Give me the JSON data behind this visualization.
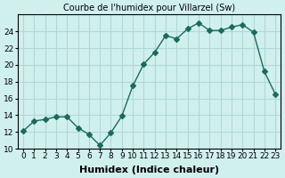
{
  "x": [
    0,
    1,
    2,
    3,
    4,
    5,
    6,
    7,
    8,
    9,
    10,
    11,
    12,
    13,
    14,
    15,
    16,
    17,
    18,
    19,
    20,
    21,
    22,
    23
  ],
  "y": [
    12.1,
    13.3,
    13.5,
    13.8,
    13.8,
    12.5,
    11.7,
    10.4,
    11.9,
    13.9,
    17.5,
    20.1,
    21.5,
    23.5,
    23.1,
    24.3,
    25.0,
    24.1,
    24.1,
    24.5,
    24.8,
    23.9,
    19.2,
    16.5
  ],
  "line_color": "#1a6b5a",
  "marker": "D",
  "marker_size": 3,
  "bg_color": "#d0f0ee",
  "grid_color": "#b0d8d8",
  "title": "Courbe de l'humidex pour Villarzel (Sw)",
  "xlabel": "Humidex (Indice chaleur)",
  "ylabel": "",
  "xlim": [
    -0.5,
    23.5
  ],
  "ylim": [
    10,
    26
  ],
  "yticks": [
    10,
    12,
    14,
    16,
    18,
    20,
    22,
    24
  ],
  "xticks": [
    0,
    1,
    2,
    3,
    4,
    5,
    6,
    7,
    8,
    9,
    10,
    11,
    12,
    13,
    14,
    15,
    16,
    17,
    18,
    19,
    20,
    21,
    22,
    23
  ],
  "xtick_labels": [
    "0",
    "1",
    "2",
    "3",
    "4",
    "5",
    "6",
    "7",
    "8",
    "9",
    "10",
    "11",
    "12",
    "13",
    "14",
    "15",
    "16",
    "17",
    "18",
    "19",
    "20",
    "21",
    "22",
    "23"
  ],
  "title_fontsize": 7,
  "label_fontsize": 8,
  "tick_fontsize": 6.5
}
